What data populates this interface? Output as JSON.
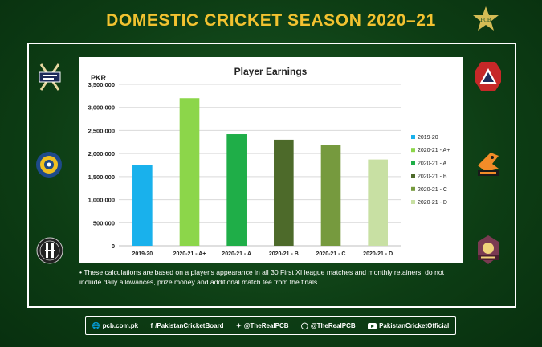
{
  "header": {
    "title": "DOMESTIC CRICKET SEASON 2020–21"
  },
  "chart_data": {
    "type": "bar",
    "title": "Player Earnings",
    "ylabel": "PKR",
    "xlabel": "",
    "ylim": [
      0,
      3500000
    ],
    "yticks": [
      "0",
      "500,000",
      "1,000,000",
      "1,500,000",
      "2,000,000",
      "2,500,000",
      "3,000,000",
      "3,500,000"
    ],
    "grid": true,
    "legend_position": "right",
    "categories": [
      "2019-20",
      "2020-21 - A+",
      "2020-21 - A",
      "2020-21 - B",
      "2020-21 - C",
      "2020-21 - D"
    ],
    "values": [
      1750000,
      3200000,
      2420000,
      2300000,
      2180000,
      1870000
    ],
    "colors": [
      "#19b1ec",
      "#8cd64a",
      "#1fae48",
      "#4d6a2a",
      "#769a3e",
      "#c8e0a3"
    ]
  },
  "footnote": "• These calculations are based on a player's appearance in all 30 First XI league matches and monthly retainers; do not include daily allowances, prize money and additional match fee from the finals",
  "social": {
    "website": "pcb.com.pk",
    "facebook": "/PakistanCricketBoard",
    "twitter": "@TheRealPCB",
    "instagram": "@TheRealPCB",
    "youtube": "PakistanCricketOfficial"
  },
  "icons": {
    "logo": "pcb-star-icon",
    "team_logos": [
      "balochistan-logo",
      "central-punjab-logo",
      "khyber-pakhtunkhwa-logo",
      "northern-logo",
      "southern-punjab-logo",
      "sindh-logo"
    ]
  }
}
